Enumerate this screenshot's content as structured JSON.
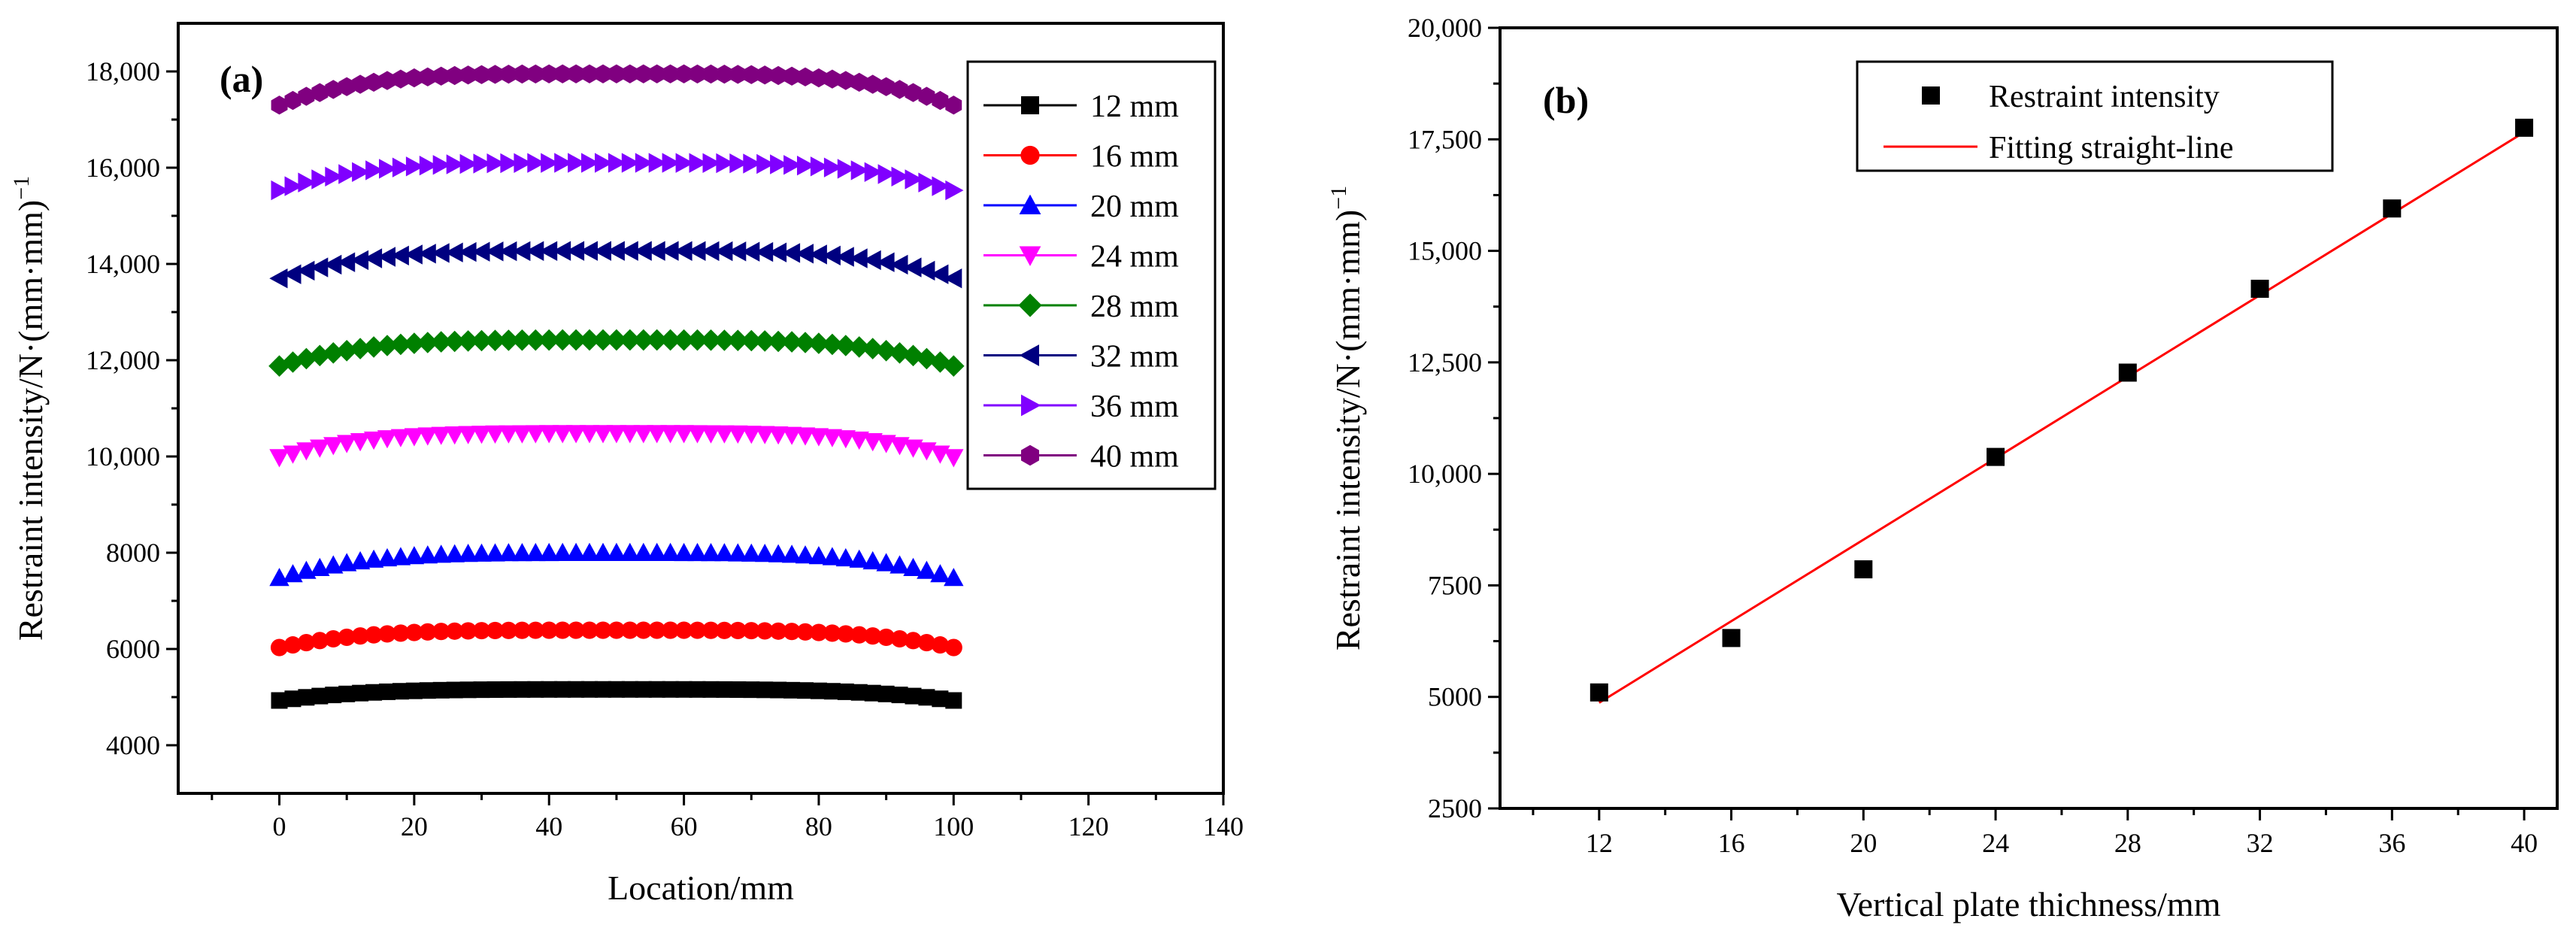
{
  "chart_data": [
    {
      "panel": "(a)",
      "type": "scatter",
      "xlabel": "Location/mm",
      "ylabel_main": "Restraint intensity/N·(mm·mm)",
      "ylabel_sup": "−1",
      "xlim": [
        -15,
        140
      ],
      "ylim": [
        3000,
        19000
      ],
      "xticks": [
        0,
        20,
        40,
        60,
        80,
        100,
        120,
        140
      ],
      "yticks": [
        4000,
        6000,
        8000,
        10000,
        12000,
        14000,
        16000,
        18000
      ],
      "ytick_labels": [
        "4000",
        "6000",
        "8000",
        "10,000",
        "12,000",
        "14,000",
        "16,000",
        "18,000"
      ],
      "legend": "top-right",
      "x_start": 0,
      "x_step": 2,
      "x_end": 100,
      "series": [
        {
          "name": "12 mm",
          "color": "#000000",
          "marker": "square",
          "edge": 4930,
          "peak": 5160
        },
        {
          "name": "16 mm",
          "color": "#ff0000",
          "marker": "circle",
          "edge": 6030,
          "peak": 6390
        },
        {
          "name": "20 mm",
          "color": "#0000ff",
          "marker": "triangle-up",
          "edge": 7480,
          "peak": 8000
        },
        {
          "name": "24 mm",
          "color": "#ff00ff",
          "marker": "triangle-down",
          "edge": 9980,
          "peak": 10480
        },
        {
          "name": "28 mm",
          "color": "#008000",
          "marker": "diamond",
          "edge": 11880,
          "peak": 12420
        },
        {
          "name": "32 mm",
          "color": "#000080",
          "marker": "triangle-left",
          "edge": 13700,
          "peak": 14270
        },
        {
          "name": "36 mm",
          "color": "#8000ff",
          "marker": "triangle-right",
          "edge": 15530,
          "peak": 16100
        },
        {
          "name": "40 mm",
          "color": "#800080",
          "marker": "hexagon",
          "edge": 17300,
          "peak": 17950
        }
      ]
    },
    {
      "panel": "(b)",
      "type": "scatter",
      "xlabel": "Vertical plate thichness/mm",
      "ylabel_main": "Restraint intensity/N·(mm·mm)",
      "ylabel_sup": "−1",
      "xlim": [
        9,
        41
      ],
      "ylim": [
        2500,
        20000
      ],
      "xticks": [
        12,
        16,
        20,
        24,
        28,
        32,
        36,
        40
      ],
      "yticks": [
        2500,
        5000,
        7500,
        10000,
        12500,
        15000,
        17500,
        20000
      ],
      "ytick_labels": [
        "2500",
        "5000",
        "7500",
        "10,000",
        "12,500",
        "15,000",
        "17,500",
        "20,000"
      ],
      "legend": "top-center",
      "series": [
        {
          "name": "Restraint intensity",
          "color": "#000000",
          "marker": "square",
          "x": [
            12,
            16,
            20,
            24,
            28,
            32,
            36,
            40
          ],
          "y": [
            5100,
            6320,
            7860,
            10380,
            12270,
            14150,
            15950,
            17760
          ]
        }
      ],
      "fit": {
        "name": "Fitting straight-line",
        "color": "#ff0000",
        "x": [
          12,
          40
        ],
        "y": [
          4870,
          17660
        ]
      }
    }
  ]
}
